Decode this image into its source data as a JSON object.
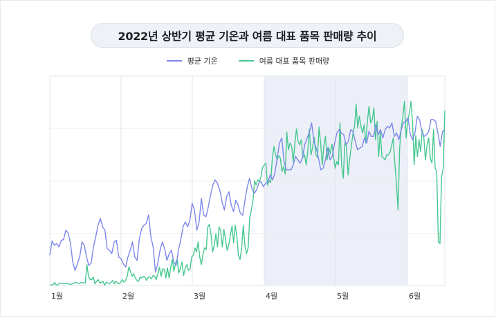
{
  "chart_data": {
    "type": "line",
    "title": "2022년 상반기 평균 기온과 여름 대표 품목 판매량 추이",
    "x_tick_labels": [
      "1월",
      "2월",
      "3월",
      "4월",
      "5월",
      "6월"
    ],
    "highlight_band": {
      "from": "4월",
      "to": "6월"
    },
    "grid": true,
    "legend_position": "top-center",
    "series": [
      {
        "name": "평균 기온",
        "color": "#7b86ea",
        "values": [
          -8.5,
          -4.2,
          -5.5,
          -5.0,
          -6.0,
          -4.0,
          -3.8,
          -1.0,
          -1.8,
          -5.0,
          -10.5,
          -13.0,
          -11.0,
          -9.0,
          -4.5,
          -5.5,
          -9.0,
          -11.5,
          -10.8,
          -6.0,
          -3.0,
          0.5,
          2.5,
          0.0,
          -1.0,
          -6.5,
          -7.0,
          -8.0,
          -4.5,
          -4.0,
          -9.0,
          -9.5,
          -11.0,
          -12.0,
          -9.0,
          -7.0,
          -4.5,
          -9.0,
          -10.0,
          -3.5,
          -0.5,
          0.5,
          1.0,
          3.5,
          -3.0,
          -6.0,
          -13.5,
          -11.0,
          -7.0,
          -4.5,
          -6.5,
          -10.0,
          -8.0,
          -7.0,
          -10.5,
          -11.5,
          -7.0,
          -4.0,
          0.0,
          1.5,
          0.0,
          2.0,
          7.0,
          5.0,
          -1.0,
          1.5,
          8.5,
          3.5,
          3.0,
          6.0,
          9.5,
          12.5,
          14.0,
          13.0,
          11.0,
          7.5,
          5.0,
          9.0,
          10.5,
          6.5,
          4.5,
          8.0,
          6.5,
          4.0,
          3.5,
          8.0,
          12.0,
          14.5,
          11.5,
          10.0,
          11.0,
          13.0,
          13.5,
          12.0,
          13.0,
          13.5,
          15.5,
          14.0,
          16.0,
          20.5,
          25.0,
          26.5,
          19.5,
          17.0,
          17.0,
          17.0,
          18.5,
          21.0,
          20.0,
          19.0,
          20.5,
          24.5,
          26.5,
          28.0,
          31.0,
          25.5,
          23.5,
          20.5,
          17.0,
          17.5,
          20.0,
          23.5,
          20.0,
          21.0,
          25.0,
          28.0,
          29.0,
          28.0,
          27.5,
          24.5,
          25.5,
          29.0,
          28.5,
          25.5,
          23.0,
          23.5,
          24.0,
          26.5,
          25.0,
          28.5,
          27.0,
          27.0,
          30.5,
          27.5,
          29.0,
          26.5,
          29.0,
          30.0,
          29.5,
          31.0,
          27.0,
          28.0,
          26.0,
          29.0,
          31.0,
          31.5,
          32.5,
          27.5,
          26.0,
          28.0,
          33.0,
          32.0,
          28.5,
          27.0,
          27.5,
          28.5,
          32.0,
          32.0,
          31.5,
          28.0,
          24.0,
          28.5,
          29.0
        ]
      },
      {
        "name": "여름 대표 품목 판매량",
        "color": "#45c78f",
        "values": [
          0.5,
          0.2,
          0.5,
          1.8,
          0.2,
          0.5,
          1.5,
          1.2,
          1.2,
          1.0,
          1.2,
          1.5,
          0.8,
          0.6,
          1.0,
          1.5,
          2.0,
          1.5,
          1.2,
          1.5,
          2.0,
          1.5,
          1.5,
          12.5,
          5.5,
          3.5,
          3.5,
          5.0,
          1.0,
          2.5,
          3.5,
          1.5,
          2.0,
          2.5,
          0.2,
          2.0,
          1.5,
          1.0,
          2.0,
          3.0,
          1.0,
          2.5,
          1.5,
          1.0,
          2.0,
          3.5,
          2.0,
          3.0,
          5.5,
          11.0,
          8.5,
          5.5,
          7.0,
          4.5,
          3.0,
          2.5,
          5.0,
          4.5,
          5.5,
          5.0,
          3.0,
          5.0,
          5.0,
          4.0,
          6.0,
          5.5,
          3.5,
          7.0,
          11.0,
          5.5,
          10.0,
          9.5,
          4.5,
          10.5,
          4.5,
          10.5,
          15.5,
          8.5,
          13.5,
          15.5,
          7.5,
          10.5,
          14.0,
          6.0,
          10.5,
          12.5,
          9.0,
          10.0,
          17.0,
          18.0,
          22.5,
          20.0,
          26.0,
          17.0,
          12.5,
          18.5,
          22.5,
          21.5,
          35.0,
          36.5,
          30.0,
          20.0,
          24.0,
          31.0,
          23.0,
          35.0,
          32.5,
          23.0,
          33.5,
          27.5,
          21.0,
          24.0,
          30.0,
          35.5,
          25.5,
          36.0,
          29.5,
          18.0,
          15.5,
          22.5,
          36.0,
          24.0,
          19.0,
          22.5,
          40.5,
          45.0,
          50.5,
          62.5,
          60.0,
          63.0,
          62.0,
          65.0,
          70.5,
          72.0,
          73.0,
          60.0,
          62.5,
          61.5,
          75.5,
          83.0,
          78.0,
          75.0,
          77.5,
          76.0,
          68.0,
          71.0,
          66.5,
          91.5,
          81.0,
          85.0,
          83.0,
          74.0,
          85.0,
          93.5,
          86.0,
          84.0,
          87.0,
          76.5,
          78.0,
          72.0,
          80.0,
          93.5,
          78.0,
          82.5,
          88.5,
          78.0,
          76.5,
          94.5,
          85.0,
          72.0,
          84.0,
          89.0,
          75.0,
          82.5,
          78.5,
          84.5,
          77.0,
          70.0,
          74.0,
          72.0,
          97.0,
          72.0,
          64.0,
          85.0,
          83.0,
          66.0,
          75.5,
          83.0,
          90.5,
          95.0,
          108.0,
          94.0,
          101.0,
          95.0,
          91.0,
          96.0,
          85.0,
          98.0,
          107.0,
          97.0,
          99.0,
          106.0,
          87.0,
          98.0,
          77.0,
          92.0,
          77.0,
          76.0,
          75.0,
          78.0,
          78.0,
          79.5,
          83.5,
          88.0,
          72.5,
          60.5,
          45.0,
          82.0,
          94.5,
          101.0,
          110.0,
          88.0,
          99.0,
          102.5,
          110.0,
          97.0,
          72.0,
          89.5,
          77.0,
          87.0,
          80.0,
          93.0,
          88.0,
          75.0,
          84.0,
          88.0,
          76.0,
          73.0,
          93.0,
          70.0,
          68.0,
          26.0,
          25.0,
          65.0,
          70.0,
          104.5
        ]
      }
    ],
    "y_range_series1": [
      -17.5,
      45
    ],
    "y_range_series2": [
      0,
      125
    ]
  }
}
